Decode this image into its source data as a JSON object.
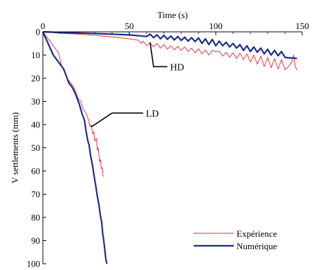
{
  "chart_data": {
    "type": "line",
    "xlabel": "Time (s)",
    "ylabel": "V settlements (mm)",
    "xlim": [
      0,
      150
    ],
    "ylim": [
      0,
      100
    ],
    "x_axis_position": "top",
    "y_inverted": true,
    "grid": false,
    "xticks": [
      0,
      50,
      100,
      150
    ],
    "yticks": [
      0,
      10,
      20,
      30,
      40,
      50,
      60,
      70,
      80,
      90,
      100
    ],
    "legend_position": "bottom-right",
    "series": [
      {
        "name": "Expérience",
        "color": "#e8202a",
        "curves": [
          [
            [
              0,
              0
            ],
            [
              10,
              0.6
            ],
            [
              20,
              1
            ],
            [
              30,
              1.5
            ],
            [
              40,
              2.2
            ],
            [
              50,
              3
            ],
            [
              55,
              3.6
            ],
            [
              57,
              5
            ],
            [
              58,
              4
            ],
            [
              60,
              6
            ],
            [
              62,
              4.8
            ],
            [
              64,
              6.5
            ],
            [
              66,
              5
            ],
            [
              68,
              7
            ],
            [
              70,
              5.5
            ],
            [
              72,
              7.5
            ],
            [
              74,
              6
            ],
            [
              76,
              7.8
            ],
            [
              78,
              6.2
            ],
            [
              80,
              8
            ],
            [
              82,
              6.5
            ],
            [
              84,
              8.5
            ],
            [
              86,
              7
            ],
            [
              88,
              9
            ],
            [
              90,
              7.3
            ],
            [
              92,
              9.5
            ],
            [
              94,
              7.8
            ],
            [
              96,
              10
            ],
            [
              98,
              8
            ],
            [
              100,
              8.5
            ],
            [
              102,
              8.5
            ],
            [
              104,
              10.5
            ],
            [
              106,
              8.8
            ],
            [
              108,
              11
            ],
            [
              110,
              9
            ],
            [
              112,
              11.5
            ],
            [
              114,
              9.2
            ],
            [
              116,
              12
            ],
            [
              118,
              9.5
            ],
            [
              120,
              13
            ],
            [
              122,
              10
            ],
            [
              124,
              14
            ],
            [
              126,
              10.5
            ],
            [
              128,
              15
            ],
            [
              130,
              11
            ],
            [
              132,
              15.5
            ],
            [
              134,
              11.5
            ],
            [
              136,
              16
            ],
            [
              138,
              12
            ],
            [
              140,
              16.3
            ],
            [
              142,
              15
            ],
            [
              144,
              13
            ],
            [
              145,
              10
            ],
            [
              146,
              15
            ],
            [
              147,
              16.5
            ]
          ],
          [
            [
              0,
              0
            ],
            [
              3,
              3
            ],
            [
              6,
              6
            ],
            [
              9,
              9
            ],
            [
              11,
              15
            ],
            [
              13,
              18
            ],
            [
              14,
              20
            ],
            [
              16,
              22
            ],
            [
              18,
              24
            ],
            [
              19,
              26
            ],
            [
              20,
              28
            ],
            [
              21,
              29.5
            ],
            [
              22,
              30
            ],
            [
              23,
              33
            ],
            [
              24,
              34
            ],
            [
              25,
              35
            ],
            [
              25.8,
              37
            ],
            [
              26.5,
              38
            ],
            [
              27.2,
              41
            ],
            [
              28,
              40
            ],
            [
              28.8,
              44
            ],
            [
              29.5,
              43
            ],
            [
              30,
              47
            ],
            [
              31,
              46
            ],
            [
              31.5,
              51
            ],
            [
              32,
              50
            ],
            [
              32.8,
              56
            ],
            [
              33.3,
              55
            ],
            [
              33.8,
              59
            ],
            [
              34.3,
              58.5
            ],
            [
              34.8,
              62
            ],
            [
              35.2,
              62.5
            ]
          ]
        ]
      },
      {
        "name": "Numérique",
        "color": "#1a2b8c",
        "curves": [
          [
            [
              0,
              0
            ],
            [
              20,
              0.5
            ],
            [
              40,
              1
            ],
            [
              50,
              1.3
            ],
            [
              60,
              2
            ],
            [
              62,
              1
            ],
            [
              64,
              2.5
            ],
            [
              66,
              1.3
            ],
            [
              68,
              3
            ],
            [
              70,
              1.5
            ],
            [
              72,
              3.2
            ],
            [
              74,
              1.8
            ],
            [
              76,
              3.5
            ],
            [
              78,
              2
            ],
            [
              80,
              3.7
            ],
            [
              82,
              2.3
            ],
            [
              84,
              4
            ],
            [
              86,
              2.5
            ],
            [
              88,
              4.2
            ],
            [
              90,
              2.6
            ],
            [
              92,
              5
            ],
            [
              94,
              3
            ],
            [
              96,
              5.5
            ],
            [
              98,
              3.3
            ],
            [
              100,
              6
            ],
            [
              102,
              4
            ],
            [
              104,
              6
            ],
            [
              106,
              4.5
            ],
            [
              108,
              6.5
            ],
            [
              110,
              5
            ],
            [
              112,
              7
            ],
            [
              114,
              5.5
            ],
            [
              116,
              8
            ],
            [
              118,
              6
            ],
            [
              120,
              8.5
            ],
            [
              122,
              6.5
            ],
            [
              124,
              8.8
            ],
            [
              126,
              7
            ],
            [
              128,
              9.5
            ],
            [
              130,
              7.5
            ],
            [
              132,
              10
            ],
            [
              134,
              8
            ],
            [
              136,
              10.3
            ],
            [
              138,
              8.5
            ],
            [
              140,
              11
            ],
            [
              142,
              11.2
            ],
            [
              145,
              11.3
            ],
            [
              147,
              11.5
            ]
          ],
          [
            [
              0,
              0
            ],
            [
              3,
              5
            ],
            [
              6,
              10
            ],
            [
              9,
              13
            ],
            [
              12,
              16
            ],
            [
              15,
              22
            ],
            [
              17,
              24
            ],
            [
              19,
              27
            ],
            [
              21,
              31
            ],
            [
              22.5,
              35
            ],
            [
              24,
              38
            ],
            [
              25,
              43
            ],
            [
              26,
              47
            ],
            [
              26.8,
              49
            ],
            [
              27.5,
              53
            ],
            [
              28.3,
              56
            ],
            [
              29,
              59
            ],
            [
              29.8,
              63
            ],
            [
              30.5,
              66
            ],
            [
              31.3,
              70
            ],
            [
              32,
              73
            ],
            [
              32.5,
              75
            ],
            [
              33.2,
              79
            ],
            [
              34,
              82
            ],
            [
              34.6,
              87
            ],
            [
              35.2,
              90
            ],
            [
              35.8,
              94
            ],
            [
              36.4,
              98
            ],
            [
              37,
              100
            ]
          ]
        ]
      }
    ],
    "annotations": [
      {
        "text": "HD",
        "at": [
          62,
          4.5
        ],
        "elbow": [
          64,
          15
        ],
        "to": [
          72,
          15
        ]
      },
      {
        "text": "LD",
        "at": [
          28,
          41
        ],
        "elbow": [
          40,
          35
        ],
        "to": [
          58,
          35
        ]
      }
    ]
  }
}
